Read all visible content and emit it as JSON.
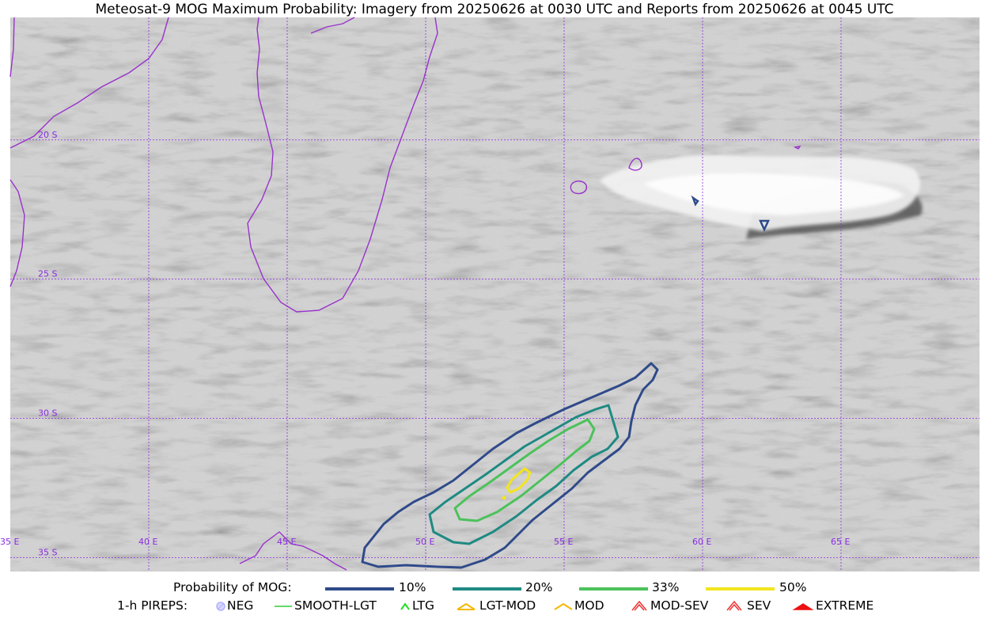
{
  "title": "Meteosat-9 MOG Maximum Probability: Imagery from 20250626 at 0030 UTC and Reports from 20250626 at 0045 UTC",
  "map": {
    "projection_extent": {
      "lon_min": 35,
      "lon_max": 70,
      "lat_min": -35.5,
      "lat_max": -15.6
    },
    "grid_color": "#8a2be2",
    "coast_color": "#9932cc",
    "lon_labels": [
      {
        "lon": 35,
        "text": "35 E"
      },
      {
        "lon": 40,
        "text": "40 E"
      },
      {
        "lon": 45,
        "text": "45 E"
      },
      {
        "lon": 50,
        "text": "50 E"
      },
      {
        "lon": 55,
        "text": "55 E"
      },
      {
        "lon": 60,
        "text": "60 E"
      },
      {
        "lon": 65,
        "text": "65 E"
      }
    ],
    "lat_labels": [
      {
        "lat": -20,
        "text": "20 S"
      },
      {
        "lat": -25,
        "text": "25 S"
      },
      {
        "lat": -30,
        "text": "30 S"
      },
      {
        "lat": -35,
        "text": "35 S"
      }
    ]
  },
  "legend": {
    "probability_label": "Probability of MOG:",
    "probability_levels": [
      {
        "text": "10%",
        "color": "#2f4a8a"
      },
      {
        "text": "20%",
        "color": "#1f8a83"
      },
      {
        "text": "33%",
        "color": "#4cc25a"
      },
      {
        "text": "50%",
        "color": "#f2e51e"
      }
    ],
    "pireps_label": "1-h PIREPS:",
    "pireps": [
      {
        "text": "NEG",
        "color": "#b0b0ff",
        "icon": "neg-circle-icon"
      },
      {
        "text": "SMOOTH-LGT",
        "color": "#33cc33",
        "icon": "smooth-line-icon"
      },
      {
        "text": "LTG",
        "color": "#22dd22",
        "icon": "ltg-caret-icon"
      },
      {
        "text": "LGT-MOD",
        "color": "#f5b800",
        "icon": "lgt-mod-caret-icon"
      },
      {
        "text": "MOD",
        "color": "#f5b800",
        "icon": "mod-caret-icon"
      },
      {
        "text": "MOD-SEV",
        "color": "#ee3333",
        "icon": "mod-sev-caret-icon"
      },
      {
        "text": "SEV",
        "color": "#ee3333",
        "icon": "sev-caret-icon"
      },
      {
        "text": "EXTREME",
        "color": "#ee1111",
        "icon": "extreme-caret-icon"
      }
    ]
  }
}
